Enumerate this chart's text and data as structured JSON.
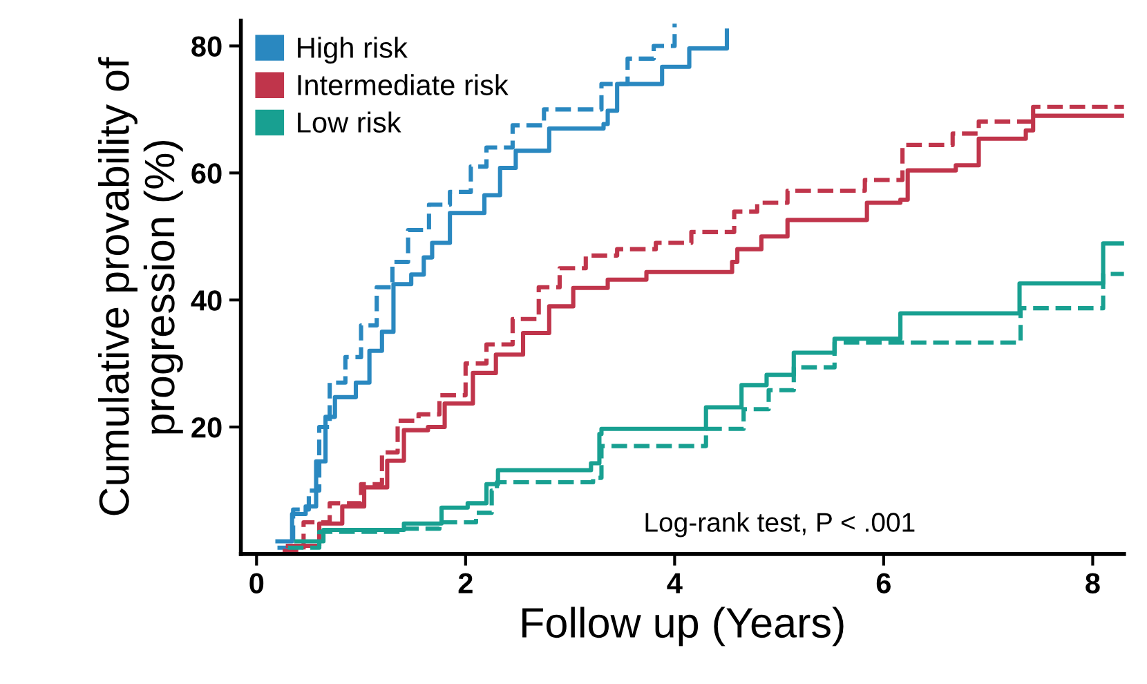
{
  "chart_data": {
    "type": "step",
    "xlabel": "Follow up (Years)",
    "ylabel": "Cumulative provability of\nprogression (%)",
    "xlim": [
      -0.15,
      8.3
    ],
    "ylim": [
      0,
      84
    ],
    "xticks": [
      0,
      2,
      4,
      6,
      8
    ],
    "yticks": [
      20,
      40,
      60,
      80
    ],
    "grid": false,
    "legend": "top left",
    "marker": "none",
    "annotations": [
      "Log-rank test, P < .001"
    ],
    "series": [
      {
        "name": "High risk",
        "color": "#2a88c0",
        "line_style": "solid",
        "x": [
          0.2,
          0.34,
          0.47,
          0.57,
          0.66,
          0.75,
          0.95,
          1.08,
          1.2,
          1.31,
          1.48,
          1.6,
          1.68,
          1.85,
          2.06,
          2.18,
          2.33,
          2.48,
          2.8,
          3.32,
          3.36,
          3.45,
          3.88,
          4.14,
          4.5
        ],
        "values": [
          2,
          6.3,
          7.5,
          14.6,
          21.6,
          24.7,
          27,
          32,
          35,
          42.5,
          44,
          46.7,
          49,
          53.7,
          53.7,
          56.5,
          60.8,
          63.5,
          67,
          67.7,
          69.8,
          74,
          76.7,
          79.6,
          82.4
        ]
      },
      {
        "color": "#2a88c0",
        "line_style": "dashed",
        "x": [
          0.2,
          0.35,
          0.5,
          0.6,
          0.7,
          0.85,
          1.0,
          1.15,
          1.3,
          1.45,
          1.65,
          1.85,
          2.05,
          2.2,
          2.45,
          2.75,
          3.2,
          3.3,
          3.55,
          3.8,
          4.0
        ],
        "values": [
          1,
          7,
          10,
          20,
          27,
          31,
          36,
          42,
          46,
          51,
          55,
          57,
          61,
          64,
          67.5,
          70,
          70,
          74,
          78,
          80,
          83.5
        ]
      },
      {
        "name": "Intermediate risk",
        "color": "#c0354b",
        "line_style": "solid",
        "x": [
          0.3,
          0.6,
          0.82,
          1.03,
          1.25,
          1.41,
          1.64,
          1.8,
          2.07,
          2.29,
          2.55,
          2.8,
          3.03,
          3.36,
          3.73,
          4.55,
          4.6,
          4.83,
          5.08,
          5.84,
          6.16,
          6.23,
          6.69,
          6.91,
          7.36,
          7.43,
          8.3
        ],
        "values": [
          1.3,
          4.8,
          7.5,
          10.5,
          14.7,
          19.5,
          20,
          23.7,
          28.5,
          31.4,
          34.8,
          39,
          41.9,
          43.2,
          44.4,
          46,
          48,
          50,
          52.6,
          55.3,
          55.8,
          60.4,
          61.2,
          65.4,
          66.7,
          69,
          69
        ]
      },
      {
        "color": "#c0354b",
        "line_style": "dashed",
        "x": [
          0.25,
          0.45,
          0.7,
          1.0,
          1.2,
          1.35,
          1.55,
          1.75,
          2.0,
          2.2,
          2.45,
          2.7,
          2.9,
          3.15,
          3.45,
          3.82,
          4.16,
          4.57,
          4.79,
          5.08,
          5.82,
          6.18,
          6.66,
          6.91,
          7.43,
          8.3
        ],
        "values": [
          0.5,
          5,
          8,
          11,
          16,
          21,
          22,
          25,
          30,
          33,
          37,
          42,
          45,
          47,
          48,
          49,
          50.7,
          53.9,
          55.3,
          57.2,
          58.9,
          64.4,
          66.2,
          68.1,
          70.4,
          70.4
        ]
      },
      {
        "name": "Low risk",
        "color": "#18a091",
        "line_style": "solid",
        "x": [
          0.38,
          0.64,
          1.41,
          1.77,
          2.02,
          2.2,
          2.31,
          3.2,
          3.28,
          3.3,
          4.3,
          4.64,
          4.88,
          5.14,
          5.53,
          6.16,
          7.3,
          8.1,
          8.3
        ],
        "values": [
          2,
          3.8,
          4.8,
          7.3,
          8,
          11,
          13.2,
          14.3,
          18.9,
          19.7,
          23.1,
          26.6,
          28.2,
          31.7,
          33.9,
          37.9,
          42.6,
          48.9,
          48.9
        ]
      },
      {
        "color": "#18a091",
        "line_style": "dashed",
        "x": [
          0.3,
          0.6,
          1.4,
          1.75,
          2.1,
          2.25,
          2.3,
          3.22,
          3.3,
          4.3,
          4.66,
          4.9,
          5.14,
          5.53,
          7.31,
          8.1,
          8.3
        ],
        "values": [
          1,
          3.5,
          4,
          5,
          6.5,
          10,
          11.3,
          12,
          17,
          19.7,
          22.8,
          25.8,
          29.4,
          33.3,
          38.7,
          44.1,
          44.1
        ]
      }
    ]
  }
}
